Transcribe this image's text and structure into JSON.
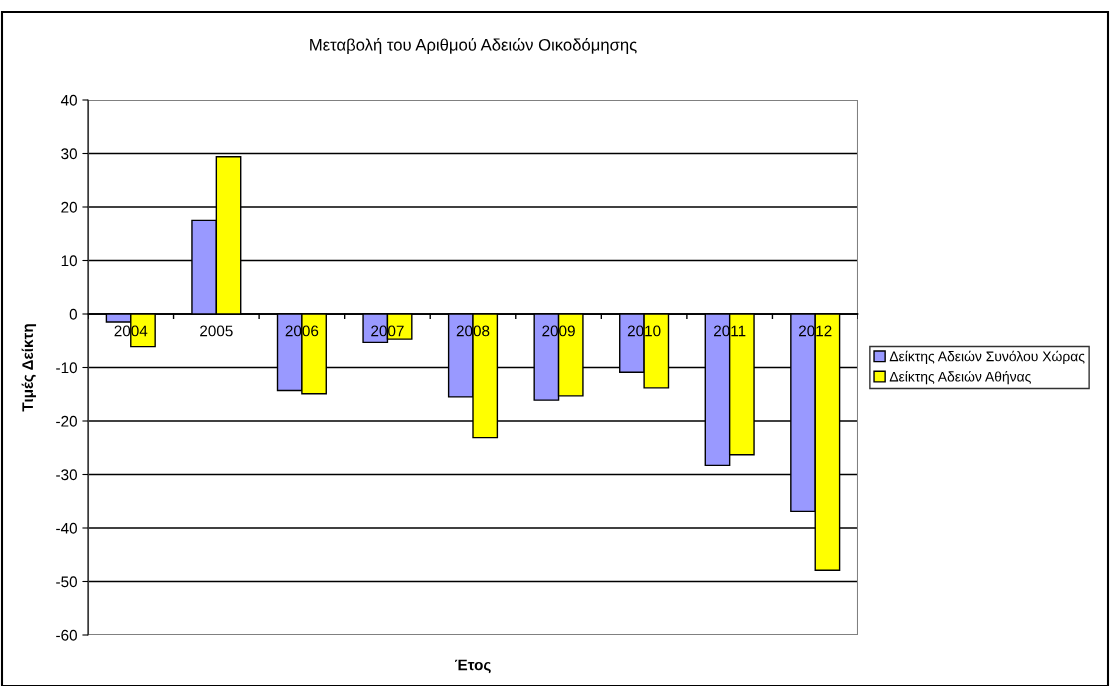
{
  "chart_data": {
    "type": "bar",
    "title": "Μεταβολή του Αριθμού Αδειών Οικοδόμησης",
    "xlabel": "Έτος",
    "ylabel": "Τιμές Δείκτη",
    "categories": [
      "2004",
      "2005",
      "2006",
      "2007",
      "2008",
      "2009",
      "2010",
      "2011",
      "2012"
    ],
    "series": [
      {
        "name": "Δείκτης Αδειών Συνόλου Χώρας",
        "color": "#9999ff",
        "values": [
          -1.5,
          17.5,
          -14.3,
          -5.3,
          -15.5,
          -16.1,
          -10.9,
          -28.3,
          -36.9
        ]
      },
      {
        "name": "Δείκτης Αδειών Αθήνας",
        "color": "#ffff00",
        "values": [
          -6.1,
          29.4,
          -14.9,
          -4.7,
          -23.1,
          -15.3,
          -13.8,
          -26.3,
          -47.9
        ]
      }
    ],
    "ylim": [
      -60,
      40
    ],
    "yticks": [
      -60,
      -50,
      -40,
      -30,
      -20,
      -10,
      0,
      10,
      20,
      30,
      40
    ],
    "grid": "y",
    "legend": "right"
  }
}
